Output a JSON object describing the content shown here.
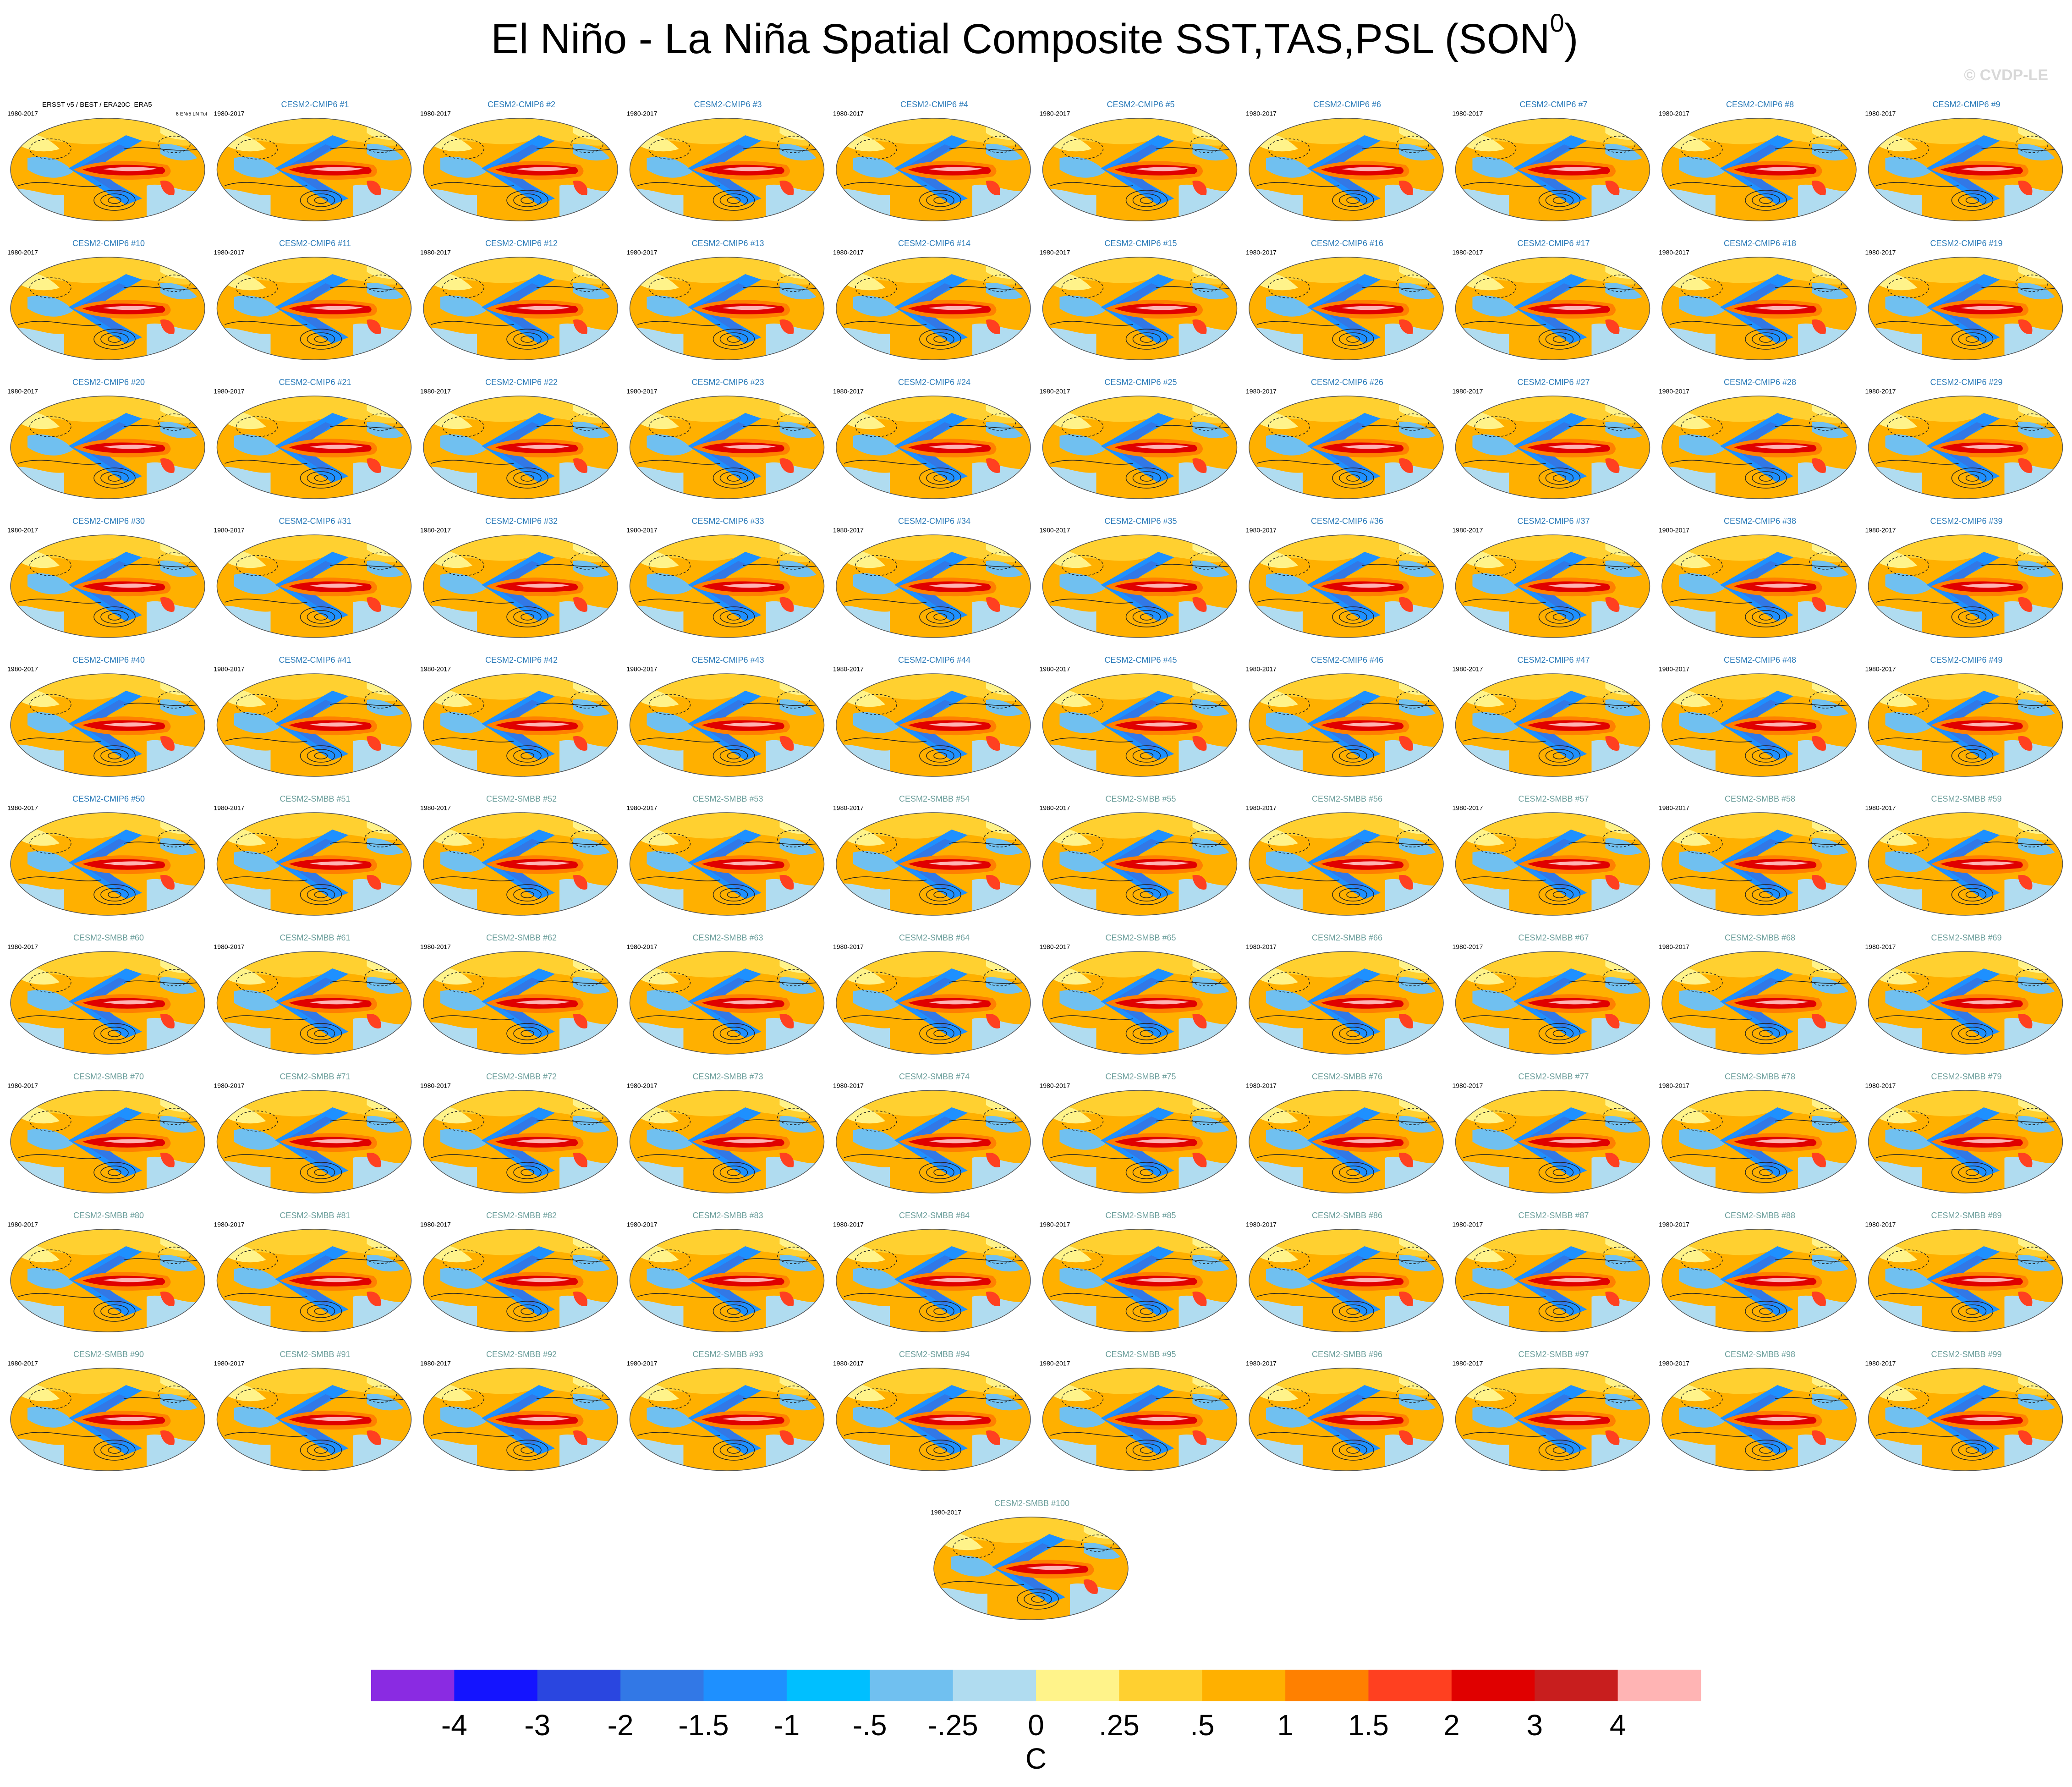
{
  "header": {
    "title": "El Niño - La Niña Spatial Composite SST,TAS,PSL (SON",
    "title_sup": "0",
    "title_end": ")",
    "watermark": "© CVDP-LE"
  },
  "panel_groups": [
    {
      "color": "#000000",
      "panels": [
        {
          "title": "ERSST v5 / BEST / ERA20C_ERA5",
          "period": "1980-2017",
          "stats": "6 EN/5 LN Tot"
        }
      ]
    },
    {
      "color": "#2b7bb9",
      "panels": [
        {
          "title": "CESM2-CMIP6 #1",
          "period": "1980-2017"
        },
        {
          "title": "CESM2-CMIP6 #2",
          "period": "1980-2017"
        },
        {
          "title": "CESM2-CMIP6 #3",
          "period": "1980-2017"
        },
        {
          "title": "CESM2-CMIP6 #4",
          "period": "1980-2017"
        },
        {
          "title": "CESM2-CMIP6 #5",
          "period": "1980-2017"
        },
        {
          "title": "CESM2-CMIP6 #6",
          "period": "1980-2017"
        },
        {
          "title": "CESM2-CMIP6 #7",
          "period": "1980-2017"
        },
        {
          "title": "CESM2-CMIP6 #8",
          "period": "1980-2017"
        },
        {
          "title": "CESM2-CMIP6 #9",
          "period": "1980-2017"
        },
        {
          "title": "CESM2-CMIP6 #10",
          "period": "1980-2017"
        },
        {
          "title": "CESM2-CMIP6 #11",
          "period": "1980-2017"
        },
        {
          "title": "CESM2-CMIP6 #12",
          "period": "1980-2017"
        },
        {
          "title": "CESM2-CMIP6 #13",
          "period": "1980-2017"
        },
        {
          "title": "CESM2-CMIP6 #14",
          "period": "1980-2017"
        },
        {
          "title": "CESM2-CMIP6 #15",
          "period": "1980-2017"
        },
        {
          "title": "CESM2-CMIP6 #16",
          "period": "1980-2017"
        },
        {
          "title": "CESM2-CMIP6 #17",
          "period": "1980-2017"
        },
        {
          "title": "CESM2-CMIP6 #18",
          "period": "1980-2017"
        },
        {
          "title": "CESM2-CMIP6 #19",
          "period": "1980-2017"
        },
        {
          "title": "CESM2-CMIP6 #20",
          "period": "1980-2017"
        },
        {
          "title": "CESM2-CMIP6 #21",
          "period": "1980-2017"
        },
        {
          "title": "CESM2-CMIP6 #22",
          "period": "1980-2017"
        },
        {
          "title": "CESM2-CMIP6 #23",
          "period": "1980-2017"
        },
        {
          "title": "CESM2-CMIP6 #24",
          "period": "1980-2017"
        },
        {
          "title": "CESM2-CMIP6 #25",
          "period": "1980-2017"
        },
        {
          "title": "CESM2-CMIP6 #26",
          "period": "1980-2017"
        },
        {
          "title": "CESM2-CMIP6 #27",
          "period": "1980-2017"
        },
        {
          "title": "CESM2-CMIP6 #28",
          "period": "1980-2017"
        },
        {
          "title": "CESM2-CMIP6 #29",
          "period": "1980-2017"
        },
        {
          "title": "CESM2-CMIP6 #30",
          "period": "1980-2017"
        },
        {
          "title": "CESM2-CMIP6 #31",
          "period": "1980-2017"
        },
        {
          "title": "CESM2-CMIP6 #32",
          "period": "1980-2017"
        },
        {
          "title": "CESM2-CMIP6 #33",
          "period": "1980-2017"
        },
        {
          "title": "CESM2-CMIP6 #34",
          "period": "1980-2017"
        },
        {
          "title": "CESM2-CMIP6 #35",
          "period": "1980-2017"
        },
        {
          "title": "CESM2-CMIP6 #36",
          "period": "1980-2017"
        },
        {
          "title": "CESM2-CMIP6 #37",
          "period": "1980-2017"
        },
        {
          "title": "CESM2-CMIP6 #38",
          "period": "1980-2017"
        },
        {
          "title": "CESM2-CMIP6 #39",
          "period": "1980-2017"
        },
        {
          "title": "CESM2-CMIP6 #40",
          "period": "1980-2017"
        },
        {
          "title": "CESM2-CMIP6 #41",
          "period": "1980-2017"
        },
        {
          "title": "CESM2-CMIP6 #42",
          "period": "1980-2017"
        },
        {
          "title": "CESM2-CMIP6 #43",
          "period": "1980-2017"
        },
        {
          "title": "CESM2-CMIP6 #44",
          "period": "1980-2017"
        },
        {
          "title": "CESM2-CMIP6 #45",
          "period": "1980-2017"
        },
        {
          "title": "CESM2-CMIP6 #46",
          "period": "1980-2017"
        },
        {
          "title": "CESM2-CMIP6 #47",
          "period": "1980-2017"
        },
        {
          "title": "CESM2-CMIP6 #48",
          "period": "1980-2017"
        },
        {
          "title": "CESM2-CMIP6 #49",
          "period": "1980-2017"
        },
        {
          "title": "CESM2-CMIP6 #50",
          "period": "1980-2017"
        }
      ]
    },
    {
      "color": "#6b9e9b",
      "panels": [
        {
          "title": "CESM2-SMBB #51",
          "period": "1980-2017"
        },
        {
          "title": "CESM2-SMBB #52",
          "period": "1980-2017"
        },
        {
          "title": "CESM2-SMBB #53",
          "period": "1980-2017"
        },
        {
          "title": "CESM2-SMBB #54",
          "period": "1980-2017"
        },
        {
          "title": "CESM2-SMBB #55",
          "period": "1980-2017"
        },
        {
          "title": "CESM2-SMBB #56",
          "period": "1980-2017"
        },
        {
          "title": "CESM2-SMBB #57",
          "period": "1980-2017"
        },
        {
          "title": "CESM2-SMBB #58",
          "period": "1980-2017"
        },
        {
          "title": "CESM2-SMBB #59",
          "period": "1980-2017"
        },
        {
          "title": "CESM2-SMBB #60",
          "period": "1980-2017"
        },
        {
          "title": "CESM2-SMBB #61",
          "period": "1980-2017"
        },
        {
          "title": "CESM2-SMBB #62",
          "period": "1980-2017"
        },
        {
          "title": "CESM2-SMBB #63",
          "period": "1980-2017"
        },
        {
          "title": "CESM2-SMBB #64",
          "period": "1980-2017"
        },
        {
          "title": "CESM2-SMBB #65",
          "period": "1980-2017"
        },
        {
          "title": "CESM2-SMBB #66",
          "period": "1980-2017"
        },
        {
          "title": "CESM2-SMBB #67",
          "period": "1980-2017"
        },
        {
          "title": "CESM2-SMBB #68",
          "period": "1980-2017"
        },
        {
          "title": "CESM2-SMBB #69",
          "period": "1980-2017"
        },
        {
          "title": "CESM2-SMBB #70",
          "period": "1980-2017"
        },
        {
          "title": "CESM2-SMBB #71",
          "period": "1980-2017"
        },
        {
          "title": "CESM2-SMBB #72",
          "period": "1980-2017"
        },
        {
          "title": "CESM2-SMBB #73",
          "period": "1980-2017"
        },
        {
          "title": "CESM2-SMBB #74",
          "period": "1980-2017"
        },
        {
          "title": "CESM2-SMBB #75",
          "period": "1980-2017"
        },
        {
          "title": "CESM2-SMBB #76",
          "period": "1980-2017"
        },
        {
          "title": "CESM2-SMBB #77",
          "period": "1980-2017"
        },
        {
          "title": "CESM2-SMBB #78",
          "period": "1980-2017"
        },
        {
          "title": "CESM2-SMBB #79",
          "period": "1980-2017"
        },
        {
          "title": "CESM2-SMBB #80",
          "period": "1980-2017"
        },
        {
          "title": "CESM2-SMBB #81",
          "period": "1980-2017"
        },
        {
          "title": "CESM2-SMBB #82",
          "period": "1980-2017"
        },
        {
          "title": "CESM2-SMBB #83",
          "period": "1980-2017"
        },
        {
          "title": "CESM2-SMBB #84",
          "period": "1980-2017"
        },
        {
          "title": "CESM2-SMBB #85",
          "period": "1980-2017"
        },
        {
          "title": "CESM2-SMBB #86",
          "period": "1980-2017"
        },
        {
          "title": "CESM2-SMBB #87",
          "period": "1980-2017"
        },
        {
          "title": "CESM2-SMBB #88",
          "period": "1980-2017"
        },
        {
          "title": "CESM2-SMBB #89",
          "period": "1980-2017"
        },
        {
          "title": "CESM2-SMBB #90",
          "period": "1980-2017"
        },
        {
          "title": "CESM2-SMBB #91",
          "period": "1980-2017"
        },
        {
          "title": "CESM2-SMBB #92",
          "period": "1980-2017"
        },
        {
          "title": "CESM2-SMBB #93",
          "period": "1980-2017"
        },
        {
          "title": "CESM2-SMBB #94",
          "period": "1980-2017"
        },
        {
          "title": "CESM2-SMBB #95",
          "period": "1980-2017"
        },
        {
          "title": "CESM2-SMBB #96",
          "period": "1980-2017"
        },
        {
          "title": "CESM2-SMBB #97",
          "period": "1980-2017"
        },
        {
          "title": "CESM2-SMBB #98",
          "period": "1980-2017"
        },
        {
          "title": "CESM2-SMBB #99",
          "period": "1980-2017"
        },
        {
          "title": "CESM2-SMBB #100",
          "period": "1980-2017"
        }
      ]
    }
  ],
  "colorbar": {
    "colors": [
      "#8a2be2",
      "#1414ff",
      "#2a46e0",
      "#3278e6",
      "#1e90ff",
      "#00bfff",
      "#70c0f0",
      "#b0dcf0",
      "#fff38a",
      "#ffd030",
      "#ffb000",
      "#ff8000",
      "#ff4020",
      "#e00000",
      "#c81e1e",
      "#ffb4b4"
    ],
    "ticks": [
      -4,
      -3,
      -2,
      -1.5,
      -1,
      {
        "value": -0.5,
        "label": "-.5"
      },
      {
        "value": -0.25,
        "label": "-.25"
      },
      0,
      {
        "value": 0.25,
        "label": ".25"
      },
      {
        "value": 0.5,
        "label": ".5"
      },
      1,
      1.5,
      2,
      3,
      4
    ],
    "label": "C"
  }
}
